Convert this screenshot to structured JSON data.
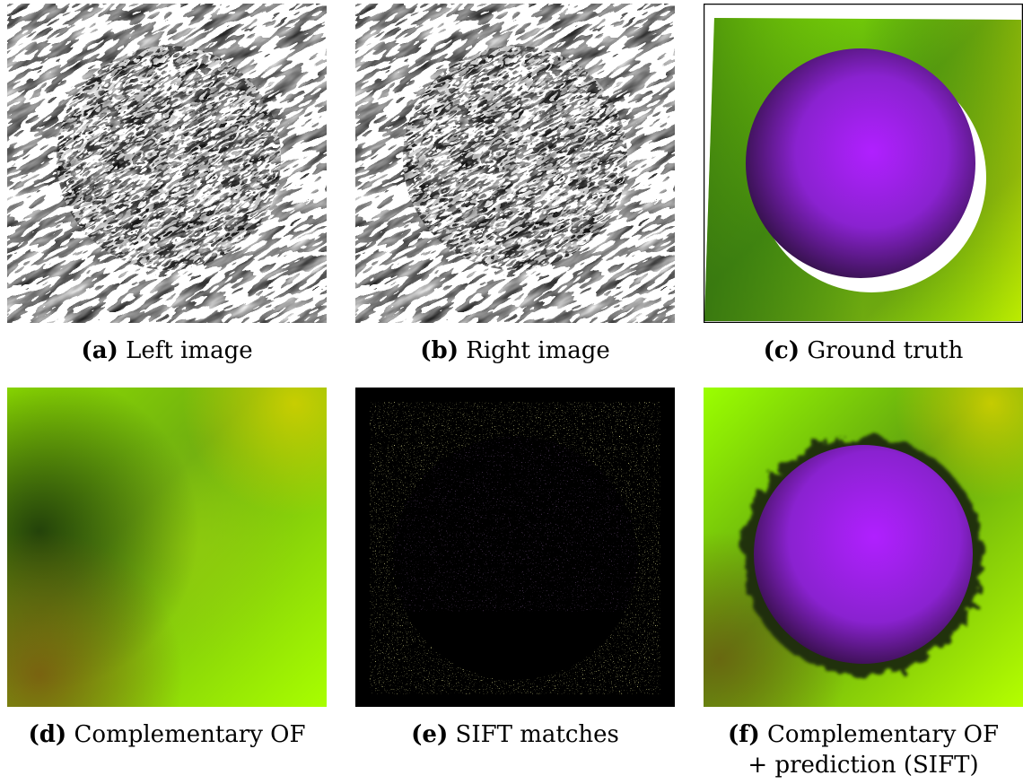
{
  "figure": {
    "panels": [
      {
        "id": "a",
        "tag": "(a)",
        "caption": "Left image"
      },
      {
        "id": "b",
        "tag": "(b)",
        "caption": "Right image"
      },
      {
        "id": "c",
        "tag": "(c)",
        "caption": "Ground truth"
      },
      {
        "id": "d",
        "tag": "(d)",
        "caption": "Complementary OF"
      },
      {
        "id": "e",
        "tag": "(e)",
        "caption": "SIFT matches"
      },
      {
        "id": "f",
        "tag": "(f)",
        "caption": "Complementary OF",
        "caption_line2": "+ prediction (SIFT)"
      }
    ]
  },
  "colors": {
    "green_bright": "#aaff00",
    "green_dark": "#2e6b10",
    "olive": "#8a7a10",
    "sphere_center": "#b020ff",
    "sphere_edge": "#3a0f5a",
    "match_yellow": "#c8c84a",
    "match_purple": "#7a3aa0"
  }
}
